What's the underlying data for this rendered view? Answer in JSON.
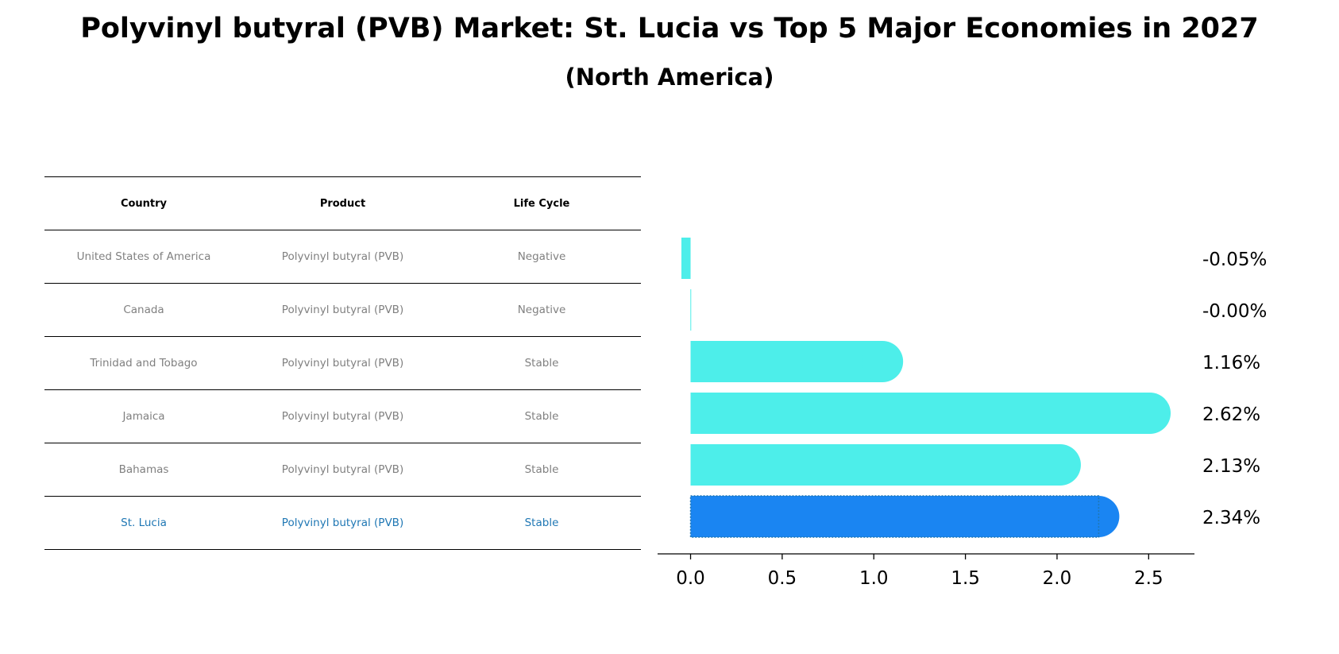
{
  "title": "Polyvinyl butyral (PVB) Market: St. Lucia vs Top 5 Major Economies in 2027",
  "subtitle": "(North America)",
  "table": {
    "headers": [
      "Country",
      "Product",
      "Life Cycle"
    ],
    "rows": [
      {
        "country": "United States of America",
        "product": "Polyvinyl butyral (PVB)",
        "life_cycle": "Negative"
      },
      {
        "country": "Canada",
        "product": "Polyvinyl butyral (PVB)",
        "life_cycle": "Negative"
      },
      {
        "country": "Trinidad and Tobago",
        "product": "Polyvinyl butyral (PVB)",
        "life_cycle": "Stable"
      },
      {
        "country": "Jamaica",
        "product": "Polyvinyl butyral (PVB)",
        "life_cycle": "Stable"
      },
      {
        "country": "Bahamas",
        "product": "Polyvinyl butyral (PVB)",
        "life_cycle": "Stable"
      },
      {
        "country": "St. Lucia",
        "product": "Polyvinyl butyral (PVB)",
        "life_cycle": "Stable"
      }
    ],
    "highlight_row": "St. Lucia"
  },
  "chart_data": {
    "type": "bar",
    "orientation": "horizontal",
    "categories": [
      "United States of America",
      "Canada",
      "Trinidad and Tobago",
      "Jamaica",
      "Bahamas",
      "St. Lucia"
    ],
    "values": [
      -0.05,
      -0.001,
      1.16,
      2.62,
      2.13,
      2.34
    ],
    "data_labels": [
      "-0.05%",
      "-0.00%",
      "1.16%",
      "2.62%",
      "2.13%",
      "2.34%"
    ],
    "xlim": [
      -0.18,
      2.75
    ],
    "xticks": [
      0.0,
      0.5,
      1.0,
      1.5,
      2.0,
      2.5
    ],
    "xtick_labels": [
      "0.0",
      "0.5",
      "1.0",
      "1.5",
      "2.0",
      "2.5"
    ],
    "highlight": "St. Lucia",
    "colors": {
      "default_bar": "#4deeea",
      "highlight_bar": "#1a85f2",
      "highlight_border": "#1f77b4"
    },
    "grid": false,
    "legend": "none"
  }
}
